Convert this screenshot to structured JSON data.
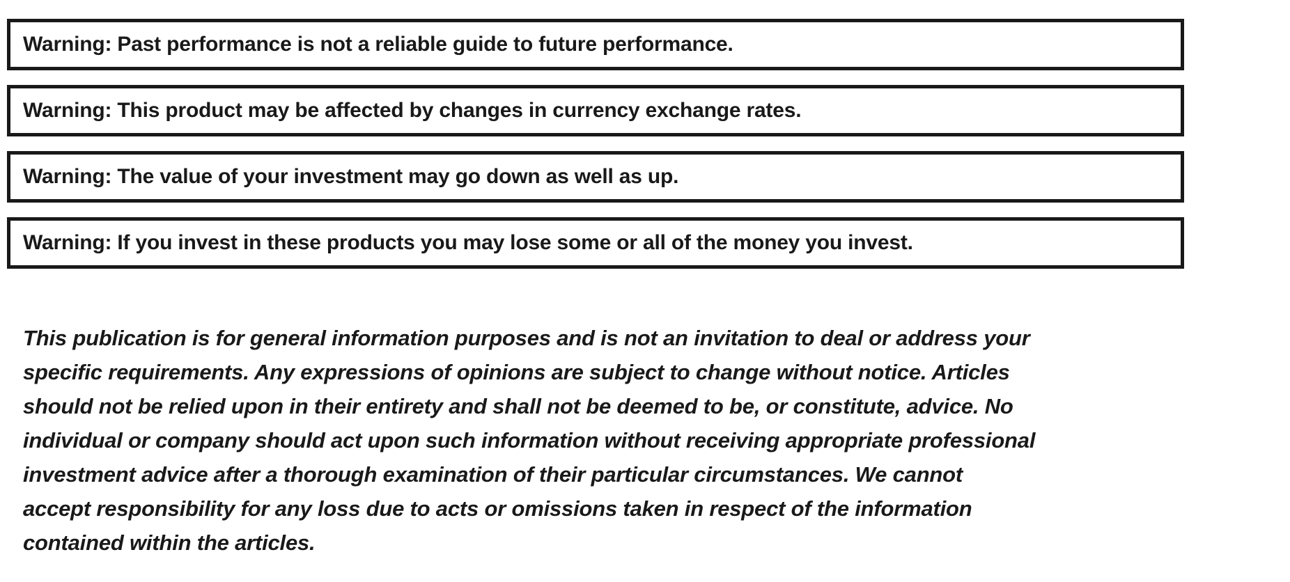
{
  "colors": {
    "background": "#ffffff",
    "text": "#191919",
    "box_border": "#191919"
  },
  "warnings": [
    "Warning: Past performance is not a reliable guide to future performance.",
    "Warning: This product may be affected by changes in currency exchange rates.",
    "Warning: The value of your investment may go down as well as up.",
    "Warning: If you invest in these products you may lose some or all of the money you invest."
  ],
  "disclaimer": {
    "full_text": "This publication is for general information purposes and is not an invitation to deal or address your specific requirements. Any expressions of opinions are subject to change without notice. Articles should not be relied upon in their entirety and shall not be deemed to be, or constitute, advice. No individual or company should act upon such information without receiving appropriate professional investment advice after a thorough examination of their particular circumstances. We cannot accept responsibility for any loss due to acts or omissions taken in respect of the information contained within the articles.",
    "lines": [
      "This publication is for general information purposes and is not an invitation to deal or address your",
      "specific requirements. Any expressions of opinions are subject to change without notice. Articles",
      "should not be relied upon in their entirety and shall not be deemed to be, or constitute, advice. No",
      "individual or company should act upon such information without receiving appropriate professional",
      "investment advice after a thorough examination of their particular circumstances. We cannot",
      "accept responsibility for any loss due to acts or omissions taken in respect of the information",
      "contained within the articles."
    ]
  }
}
